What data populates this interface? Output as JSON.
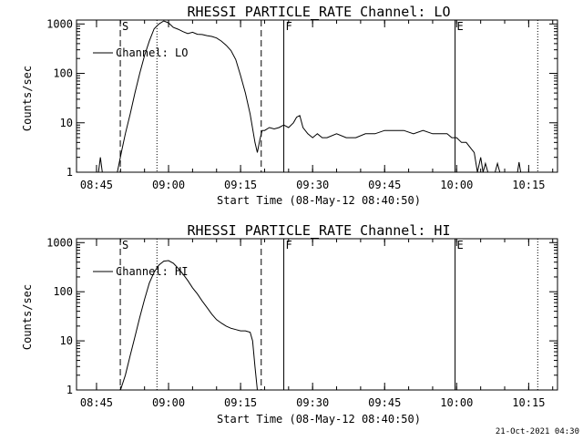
{
  "colors": {
    "foreground": "#000000",
    "background": "#ffffff"
  },
  "footer": {
    "timestamp": "21-Oct-2021 04:30"
  },
  "chart_data": [
    {
      "type": "line",
      "title": "RHESSI PARTICLE_RATE Channel: LO",
      "xlabel": "Start Time (08-May-12 08:40:50)",
      "ylabel": "Counts/sec",
      "yscale": "log",
      "xlim": [
        "08:40:50",
        "10:21:00"
      ],
      "ylim": [
        1,
        1200
      ],
      "xticks": [
        "08:45",
        "09:00",
        "09:15",
        "09:30",
        "09:45",
        "10:00",
        "10:15"
      ],
      "yticks": [
        1,
        10,
        100,
        1000
      ],
      "ytick_labels": [
        "1",
        "10",
        "100",
        "1000"
      ],
      "legend": {
        "label": "Channel: LO",
        "position": "top-left"
      },
      "markers": [
        {
          "time": "08:49:57",
          "style": "dashed",
          "label": "S"
        },
        {
          "time": "08:57:35",
          "style": "dotted",
          "label": ""
        },
        {
          "time": "09:19:18",
          "style": "dashed",
          "label": ""
        },
        {
          "time": "09:24:00",
          "style": "solid",
          "label": "F"
        },
        {
          "time": "09:59:40",
          "style": "solid",
          "label": "E"
        },
        {
          "time": "10:16:53",
          "style": "dotted",
          "label": ""
        }
      ],
      "series": [
        {
          "x": [
            "08:45:24",
            "08:45:48",
            "08:46:12",
            "08:49:20",
            "08:50:10",
            "08:51:00",
            "08:52:00",
            "08:53:00",
            "08:54:00",
            "08:55:00",
            "08:56:00",
            "08:57:00",
            "08:58:00",
            "08:59:00",
            "09:00:00",
            "09:01:00",
            "09:02:00",
            "09:03:00",
            "09:04:00",
            "09:05:00",
            "09:06:00",
            "09:07:00",
            "09:08:00",
            "09:09:00",
            "09:10:00",
            "09:11:00",
            "09:12:00",
            "09:13:00",
            "09:14:00",
            "09:15:00",
            "09:16:00",
            "09:17:00",
            "09:18:00",
            "09:18:30",
            "09:19:00",
            "09:19:30",
            "09:20:00",
            "09:21:00",
            "09:22:00",
            "09:23:00",
            "09:24:00",
            "09:25:00",
            "09:26:00",
            "09:26:40",
            "09:27:20",
            "09:28:00",
            "09:29:00",
            "09:30:00",
            "09:31:00",
            "09:32:00",
            "09:33:00",
            "09:35:00",
            "09:37:00",
            "09:39:00",
            "09:41:00",
            "09:43:00",
            "09:45:00",
            "09:47:00",
            "09:49:00",
            "09:51:00",
            "09:53:00",
            "09:55:00",
            "09:57:00",
            "09:58:00",
            "09:59:00",
            "10:00:00",
            "10:01:00",
            "10:02:00",
            "10:03:00",
            "10:03:40",
            "10:04:20",
            "10:05:00",
            "10:05:30",
            "10:06:00",
            "10:06:30",
            "10:08:00",
            "10:08:30",
            "10:09:00",
            "10:12:40",
            "10:13:00",
            "10:13:20"
          ],
          "y": [
            1,
            2,
            1,
            1,
            2.5,
            6,
            15,
            40,
            100,
            230,
            450,
            800,
            1000,
            1150,
            1050,
            850,
            780,
            700,
            640,
            680,
            620,
            610,
            580,
            560,
            520,
            450,
            370,
            290,
            190,
            90,
            40,
            15,
            4,
            2.5,
            4.5,
            7,
            7,
            8,
            7.5,
            8,
            9,
            8,
            10,
            13,
            14,
            8,
            6,
            5,
            6,
            5,
            5,
            6,
            5,
            5,
            6,
            6,
            7,
            7,
            7,
            6,
            7,
            6,
            6,
            6,
            5,
            5,
            4,
            4,
            3,
            2.5,
            1,
            2,
            1,
            1.5,
            1,
            1,
            1.5,
            1,
            1,
            1.6,
            1
          ]
        }
      ]
    },
    {
      "type": "line",
      "title": "RHESSI PARTICLE_RATE Channel: HI",
      "xlabel": "Start Time (08-May-12 08:40:50)",
      "ylabel": "Counts/sec",
      "yscale": "log",
      "xlim": [
        "08:40:50",
        "10:21:00"
      ],
      "ylim": [
        1,
        1200
      ],
      "xticks": [
        "08:45",
        "09:00",
        "09:15",
        "09:30",
        "09:45",
        "10:00",
        "10:15"
      ],
      "yticks": [
        1,
        10,
        100,
        1000
      ],
      "ytick_labels": [
        "1",
        "10",
        "100",
        "1000"
      ],
      "legend": {
        "label": "Channel: HI",
        "position": "top-left"
      },
      "markers": [
        {
          "time": "08:49:57",
          "style": "dashed",
          "label": "S"
        },
        {
          "time": "08:57:35",
          "style": "dotted",
          "label": ""
        },
        {
          "time": "09:19:18",
          "style": "dashed",
          "label": ""
        },
        {
          "time": "09:24:00",
          "style": "solid",
          "label": "F"
        },
        {
          "time": "09:59:40",
          "style": "solid",
          "label": "E"
        },
        {
          "time": "10:16:53",
          "style": "dotted",
          "label": ""
        }
      ],
      "series": [
        {
          "x": [
            "08:50:00",
            "08:51:00",
            "08:52:00",
            "08:53:00",
            "08:54:00",
            "08:55:00",
            "08:56:00",
            "08:57:00",
            "08:58:00",
            "08:59:00",
            "09:00:00",
            "09:01:00",
            "09:02:00",
            "09:03:00",
            "09:04:00",
            "09:05:00",
            "09:06:00",
            "09:07:00",
            "09:08:00",
            "09:09:00",
            "09:10:00",
            "09:11:00",
            "09:12:00",
            "09:13:00",
            "09:14:00",
            "09:15:00",
            "09:16:00",
            "09:17:00",
            "09:17:30",
            "09:18:00",
            "09:18:30"
          ],
          "y": [
            1,
            2,
            5,
            12,
            30,
            70,
            150,
            250,
            350,
            420,
            430,
            380,
            300,
            230,
            170,
            120,
            90,
            65,
            48,
            35,
            27,
            23,
            20,
            18,
            17,
            16,
            16,
            15,
            10,
            3,
            1
          ]
        }
      ]
    }
  ]
}
